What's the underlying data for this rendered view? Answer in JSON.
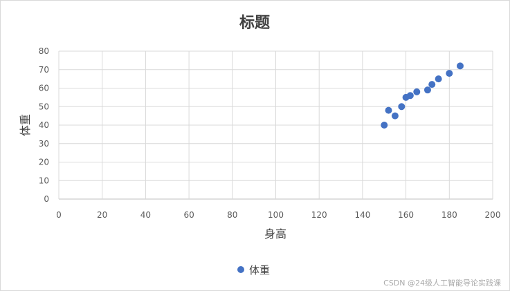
{
  "chart_data": {
    "type": "scatter",
    "title": "标题",
    "xlabel": "身高",
    "ylabel": "体重",
    "xlim": [
      0,
      200
    ],
    "ylim": [
      0,
      80
    ],
    "xticks": [
      "0",
      "20",
      "40",
      "60",
      "80",
      "100",
      "120",
      "140",
      "160",
      "180",
      "200"
    ],
    "yticks": [
      "0",
      "10",
      "20",
      "30",
      "40",
      "50",
      "60",
      "70",
      "80"
    ],
    "grid": true,
    "legend_position": "bottom",
    "series": [
      {
        "name": "体重",
        "color": "#4472c4",
        "x": [
          150,
          152,
          155,
          158,
          160,
          162,
          165,
          170,
          172,
          175,
          180,
          185
        ],
        "y": [
          40,
          48,
          45,
          50,
          55,
          56,
          58,
          59,
          62,
          65,
          68,
          72
        ]
      }
    ]
  },
  "watermark": "CSDN @24级人工智能导论实践课"
}
